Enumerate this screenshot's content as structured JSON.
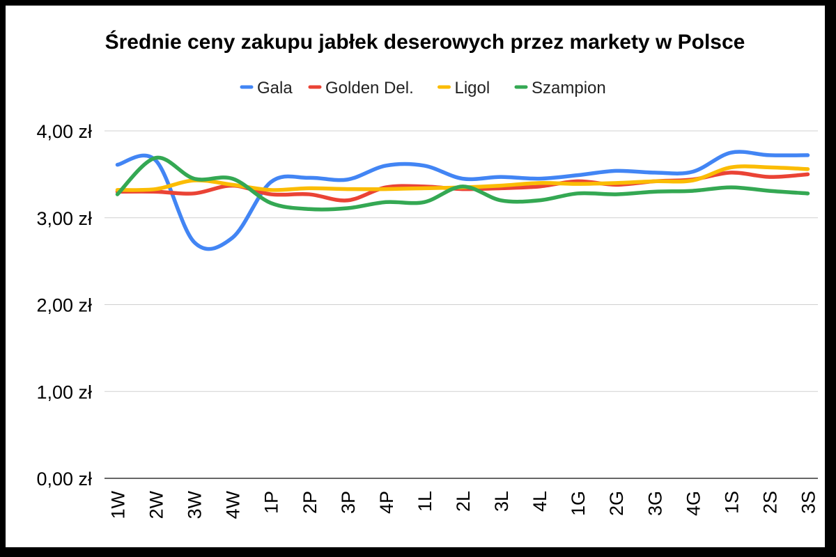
{
  "chart_data": {
    "type": "line",
    "title": "Średnie ceny zakupu jabłek deserowych przez markety w Polsce",
    "xlabel": "",
    "ylabel": "",
    "categories": [
      "1W",
      "2W",
      "3W",
      "4W",
      "1P",
      "2P",
      "3P",
      "4P",
      "1L",
      "2L",
      "3L",
      "4L",
      "1G",
      "2G",
      "3G",
      "4G",
      "1S",
      "2S",
      "3S"
    ],
    "ylim": [
      0,
      4
    ],
    "yticks": [
      0,
      1,
      2,
      3,
      4
    ],
    "ytick_labels": [
      "0,00 zł",
      "1,00 zł",
      "2,00 zł",
      "3,00 zł",
      "4,00 zł"
    ],
    "grid": true,
    "legend_position": "top",
    "series": [
      {
        "name": "Gala",
        "color": "#4285F4",
        "values": [
          3.61,
          3.66,
          2.72,
          2.77,
          3.41,
          3.46,
          3.44,
          3.6,
          3.6,
          3.45,
          3.47,
          3.45,
          3.49,
          3.54,
          3.52,
          3.53,
          3.75,
          3.72,
          3.72
        ]
      },
      {
        "name": "Golden Del.",
        "color": "#EA4335",
        "values": [
          3.3,
          3.3,
          3.28,
          3.37,
          3.27,
          3.27,
          3.2,
          3.35,
          3.36,
          3.33,
          3.34,
          3.36,
          3.42,
          3.38,
          3.42,
          3.44,
          3.52,
          3.47,
          3.5
        ]
      },
      {
        "name": "Ligol",
        "color": "#FBBC04",
        "values": [
          3.32,
          3.33,
          3.43,
          3.38,
          3.32,
          3.34,
          3.33,
          3.33,
          3.34,
          3.35,
          3.37,
          3.4,
          3.39,
          3.4,
          3.42,
          3.43,
          3.58,
          3.58,
          3.56
        ]
      },
      {
        "name": "Szampion",
        "color": "#34A853",
        "values": [
          3.27,
          3.69,
          3.45,
          3.45,
          3.17,
          3.1,
          3.11,
          3.18,
          3.18,
          3.36,
          3.2,
          3.2,
          3.28,
          3.27,
          3.3,
          3.31,
          3.35,
          3.31,
          3.28
        ]
      }
    ]
  }
}
